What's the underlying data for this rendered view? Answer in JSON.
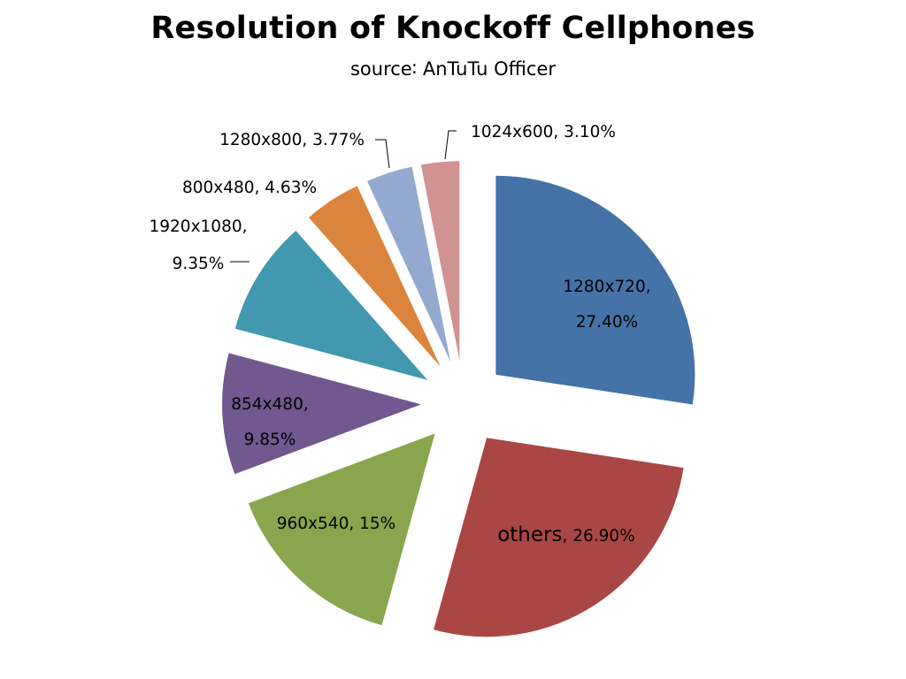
{
  "chart_data": {
    "type": "pie",
    "title": "Resolution of Knockoff Cellphones",
    "subtitle": "source∶ AnTuTu Officer",
    "slices": [
      {
        "label": "1280x720",
        "value": 27.4,
        "value_text": "27.40%",
        "color": "#4572A7"
      },
      {
        "label": "others",
        "value": 26.9,
        "value_text": "26.90%",
        "color": "#AA4643"
      },
      {
        "label": "960x540",
        "value": 15,
        "value_text": "15%",
        "color": "#89A54E"
      },
      {
        "label": "854x480",
        "value": 9.85,
        "value_text": "9.85%",
        "color": "#71588F"
      },
      {
        "label": "1920x1080",
        "value": 9.35,
        "value_text": "9.35%",
        "color": "#4198AF"
      },
      {
        "label": "800x480",
        "value": 4.63,
        "value_text": "4.63%",
        "color": "#DB843D"
      },
      {
        "label": "1280x800",
        "value": 3.77,
        "value_text": "3.77%",
        "color": "#93A9CF"
      },
      {
        "label": "1024x600",
        "value": 3.1,
        "value_text": "3.10%",
        "color": "#D19392"
      }
    ]
  }
}
